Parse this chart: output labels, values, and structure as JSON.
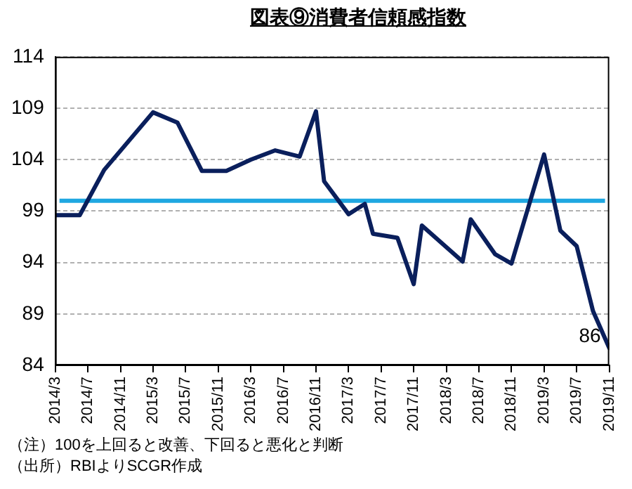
{
  "chart_data": {
    "type": "line",
    "title": "図表⑨消費者信頼感指数",
    "annotations": [
      "（注）100を上回ると改善、下回ると悪化と判断",
      "（出所）RBIよりSCGR作成"
    ],
    "x": [
      "2014-03",
      "2014-06",
      "2014-09",
      "2014-12",
      "2015-03",
      "2015-06",
      "2015-09",
      "2015-12",
      "2016-03",
      "2016-06",
      "2016-09",
      "2016-11",
      "2016-12",
      "2017-03",
      "2017-05",
      "2017-06",
      "2017-09",
      "2017-11",
      "2017-12",
      "2018-05",
      "2018-06",
      "2018-09",
      "2018-11",
      "2019-03",
      "2019-05",
      "2019-07",
      "2019-09",
      "2019-11"
    ],
    "series": [
      {
        "color": "#0a1f5c",
        "values": [
          98.6,
          98.6,
          103.0,
          105.8,
          108.6,
          107.6,
          102.9,
          102.9,
          104.0,
          104.9,
          104.3,
          108.7,
          101.9,
          98.7,
          99.7,
          96.8,
          96.4,
          91.9,
          97.6,
          94.1,
          98.2,
          94.8,
          93.9,
          104.5,
          97.1,
          95.6,
          89.3,
          85.7
        ],
        "value_labels": [
          null,
          null,
          null,
          null,
          null,
          null,
          null,
          null,
          null,
          null,
          null,
          null,
          null,
          null,
          null,
          null,
          null,
          null,
          null,
          null,
          null,
          null,
          null,
          null,
          null,
          null,
          null,
          "86"
        ]
      }
    ],
    "ylim": [
      84,
      114
    ],
    "yticks": [
      84,
      89,
      94,
      99,
      104,
      109,
      114
    ],
    "xlim": [
      "2014-03",
      "2019-11"
    ],
    "xticks": [
      {
        "value": "2014-03",
        "label": "2014/3"
      },
      {
        "value": "2014-07",
        "label": "2014/7"
      },
      {
        "value": "2014-11",
        "label": "2014/11"
      },
      {
        "value": "2015-03",
        "label": "2015/3"
      },
      {
        "value": "2015-07",
        "label": "2015/7"
      },
      {
        "value": "2015-11",
        "label": "2015/11"
      },
      {
        "value": "2016-03",
        "label": "2016/3"
      },
      {
        "value": "2016-07",
        "label": "2016/7"
      },
      {
        "value": "2016-11",
        "label": "2016/11"
      },
      {
        "value": "2017-03",
        "label": "2017/3"
      },
      {
        "value": "2017-07",
        "label": "2017/7"
      },
      {
        "value": "2017-11",
        "label": "2017/11"
      },
      {
        "value": "2018-03",
        "label": "2018/3"
      },
      {
        "value": "2018-07",
        "label": "2018/7"
      },
      {
        "value": "2018-11",
        "label": "2018/11"
      },
      {
        "value": "2019-03",
        "label": "2019/3"
      },
      {
        "value": "2019-07",
        "label": "2019/7"
      },
      {
        "value": "2019-11",
        "label": "2019/11"
      }
    ],
    "ref_lines": [
      {
        "axis": "y",
        "value": 100,
        "color": "#1fa7e1"
      }
    ],
    "grid": "y",
    "legend": false,
    "marker": "none",
    "line_style": "solid"
  }
}
